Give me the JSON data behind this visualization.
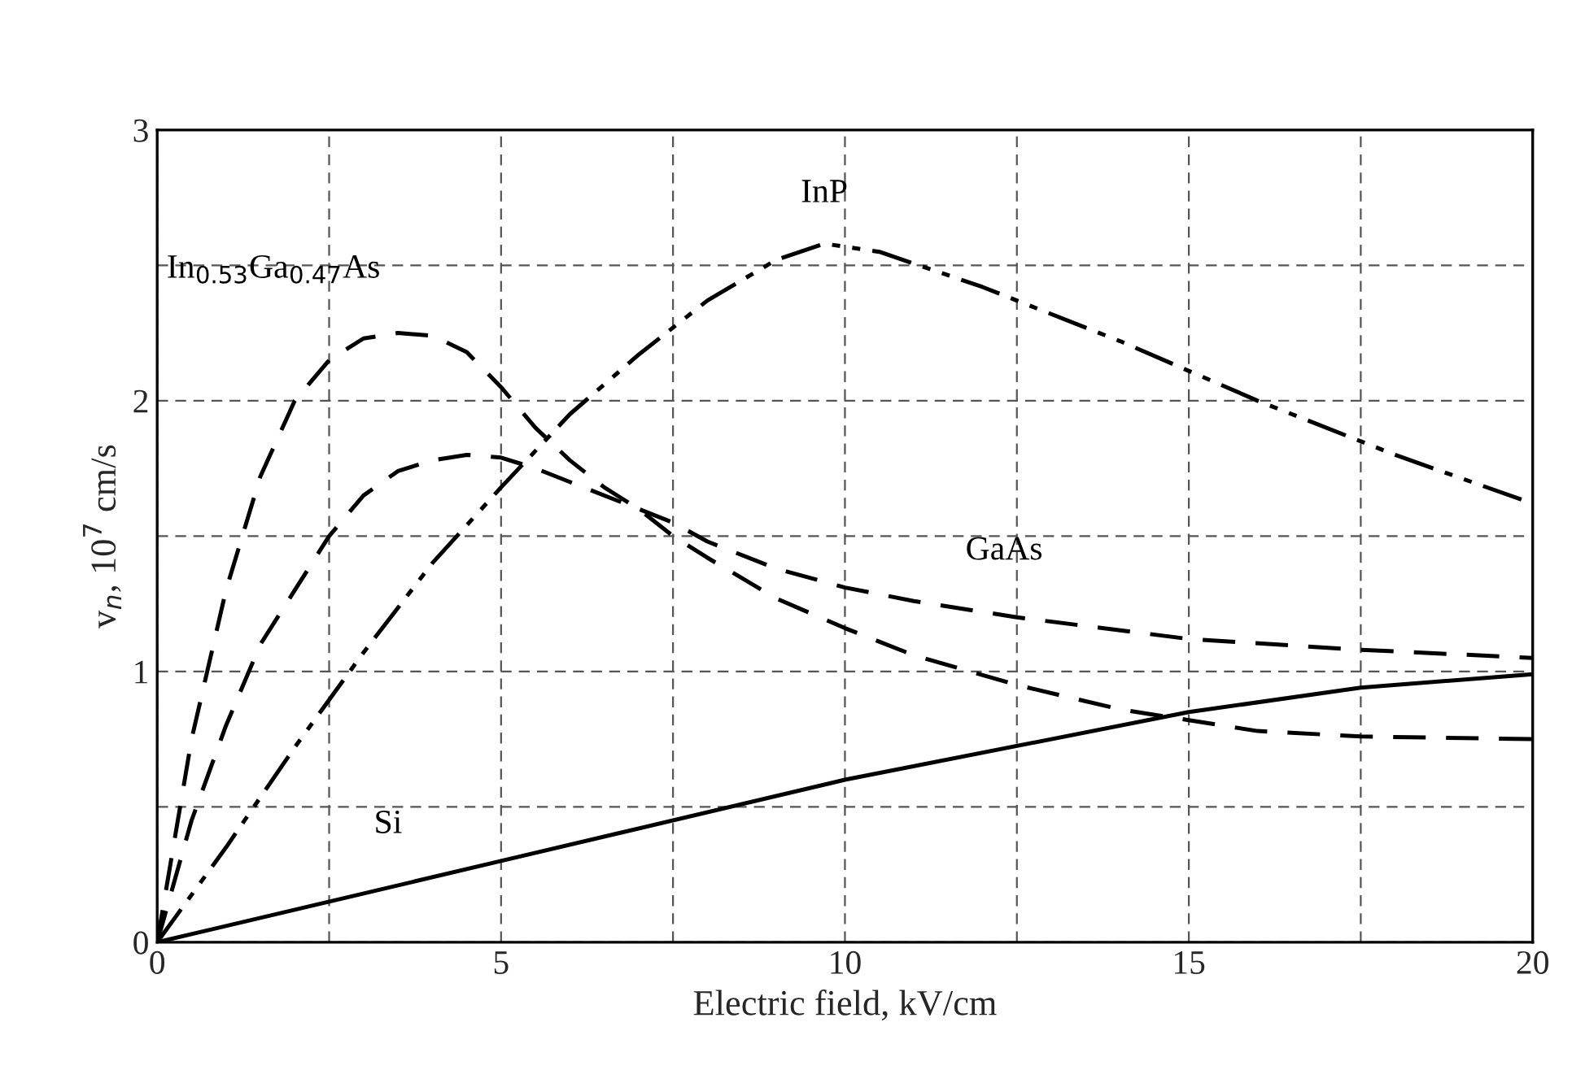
{
  "chart_data": {
    "type": "line",
    "xlabel": "Electric field, kV/cm",
    "ylabel": "v$_{n}$, 10$^{7}$ cm/s",
    "xlim": [
      0,
      20
    ],
    "ylim": [
      0,
      3
    ],
    "xticks": [
      0,
      {
        "value": 2.5,
        "label": null
      },
      5,
      {
        "value": 7.5,
        "label": null
      },
      10,
      {
        "value": 12.5,
        "label": null
      },
      15,
      {
        "value": 17.5,
        "label": null
      },
      20
    ],
    "yticks": [
      0,
      {
        "value": 0.5,
        "label": null
      },
      1,
      {
        "value": 1.5,
        "label": null
      },
      2,
      {
        "value": 2.5,
        "label": null
      },
      3
    ],
    "grid": true,
    "legend": false,
    "marker": "none",
    "series": [
      {
        "name": "InP",
        "color": "#000000",
        "line_style": "dashdot",
        "x": [
          0,
          1,
          2,
          3,
          4,
          5,
          6,
          7,
          8,
          9,
          9.7,
          10.5,
          12,
          14,
          16,
          18,
          20
        ],
        "values": [
          0,
          0.35,
          0.72,
          1.07,
          1.4,
          1.68,
          1.95,
          2.17,
          2.37,
          2.52,
          2.58,
          2.55,
          2.42,
          2.22,
          2.0,
          1.8,
          1.62
        ]
      },
      {
        "name": "In$_{0.53}$Ga$_{0.47}$As",
        "color": "#000000",
        "line_style": "dashed",
        "x": [
          0,
          0.5,
          1,
          1.5,
          2,
          2.5,
          3,
          3.5,
          4,
          4.5,
          5,
          5.5,
          6,
          6.5,
          7,
          7.5,
          8,
          9,
          10,
          11,
          12.5,
          14,
          15,
          16,
          17.5,
          20
        ],
        "values": [
          0,
          0.75,
          1.3,
          1.72,
          2.0,
          2.15,
          2.23,
          2.25,
          2.24,
          2.18,
          2.05,
          1.9,
          1.78,
          1.68,
          1.6,
          1.5,
          1.42,
          1.27,
          1.16,
          1.06,
          0.95,
          0.86,
          0.82,
          0.78,
          0.76,
          0.75
        ]
      },
      {
        "name": "GaAs",
        "color": "#000000",
        "line_style": "dashed",
        "x": [
          0,
          0.5,
          1,
          1.5,
          2,
          2.5,
          3,
          3.5,
          4,
          4.5,
          5,
          5.5,
          6,
          7,
          7.5,
          8,
          9,
          10,
          11,
          12.5,
          15,
          17.5,
          20
        ],
        "values": [
          0,
          0.45,
          0.8,
          1.1,
          1.3,
          1.5,
          1.65,
          1.74,
          1.78,
          1.8,
          1.79,
          1.75,
          1.7,
          1.6,
          1.55,
          1.48,
          1.38,
          1.31,
          1.26,
          1.2,
          1.12,
          1.08,
          1.05
        ]
      },
      {
        "name": "Si",
        "color": "#000000",
        "line_style": "solid",
        "x": [
          0,
          5,
          10,
          15,
          17.5,
          20
        ],
        "values": [
          0,
          0.3,
          0.6,
          0.85,
          0.94,
          0.99
        ]
      }
    ]
  }
}
